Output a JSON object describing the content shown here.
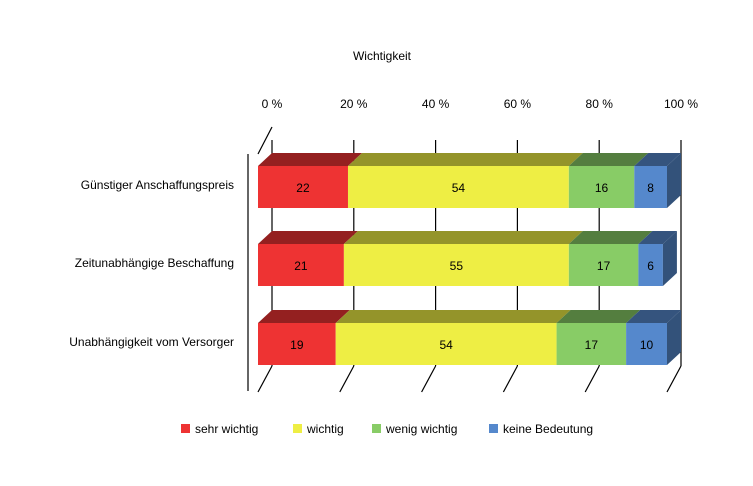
{
  "chart_data": {
    "type": "bar",
    "orientation": "horizontal",
    "stacked": true,
    "title": "Wichtigkeit",
    "x_ticks": [
      "0 %",
      "20 %",
      "40 %",
      "60 %",
      "80 %",
      "100 %"
    ],
    "xlim": [
      0,
      100
    ],
    "categories": [
      "Günstiger Anschaffungspreis",
      "Zeitunabhängige  Beschaffung",
      "Unabhängigkeit vom Versorger"
    ],
    "series": [
      {
        "name": "sehr wichtig",
        "values": [
          22,
          21,
          19
        ]
      },
      {
        "name": "wichtig",
        "values": [
          54,
          55,
          54
        ]
      },
      {
        "name": "wenig wichtig",
        "values": [
          16,
          17,
          17
        ]
      },
      {
        "name": "keine Bedeutung",
        "values": [
          8,
          6,
          10
        ]
      }
    ],
    "colors": {
      "sehr wichtig": "#ee3333",
      "wichtig": "#eeee44",
      "wenig wichtig": "#88cc66",
      "keine Bedeutung": "#5588cc"
    },
    "grid": true,
    "legend_position": "bottom",
    "style": "3d"
  }
}
